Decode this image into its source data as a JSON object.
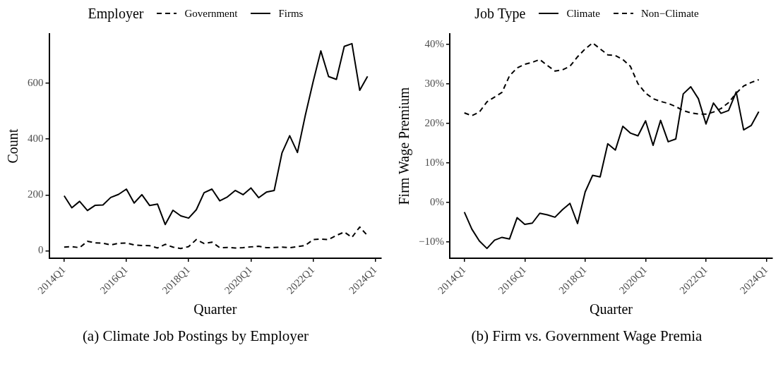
{
  "chart_data": [
    {
      "type": "line",
      "legend": "top",
      "legend_title": "Employer",
      "xlabel": "Quarter",
      "ylabel": "Count",
      "x": [
        "2014-01",
        "2014-04",
        "2014-07",
        "2014-10",
        "2015-01",
        "2015-04",
        "2015-07",
        "2015-10",
        "2016-01",
        "2016-04",
        "2016-07",
        "2016-10",
        "2017-01",
        "2017-04",
        "2017-07",
        "2017-10",
        "2018-01",
        "2018-04",
        "2018-07",
        "2018-10",
        "2019-01",
        "2019-04",
        "2019-07",
        "2019-10",
        "2020-01",
        "2020-04",
        "2020-07",
        "2020-10",
        "2021-01",
        "2021-04",
        "2021-07",
        "2021-10",
        "2022-01",
        "2022-04",
        "2022-07",
        "2022-10",
        "2023-01",
        "2023-04",
        "2023-07",
        "2023-10"
      ],
      "series": [
        {
          "name": "Government",
          "color": "#000000",
          "line_style": "dashed",
          "values": [
            13,
            15,
            11,
            34,
            28,
            27,
            21,
            27,
            28,
            21,
            19,
            18,
            10,
            23,
            13,
            8,
            15,
            40,
            26,
            31,
            11,
            12,
            10,
            11,
            14,
            16,
            11,
            12,
            13,
            11,
            15,
            19,
            40,
            42,
            40,
            55,
            67,
            48,
            85,
            54
          ]
        },
        {
          "name": "Firms",
          "color": "#000000",
          "line_style": "solid",
          "values": [
            197,
            154,
            177,
            144,
            163,
            164,
            191,
            202,
            221,
            171,
            201,
            162,
            167,
            94,
            145,
            125,
            117,
            147,
            208,
            221,
            179,
            193,
            216,
            201,
            225,
            190,
            210,
            216,
            351,
            412,
            352,
            485,
            606,
            716,
            624,
            614,
            732,
            742,
            575,
            625
          ]
        }
      ],
      "xlim": [
        "2013-07-08",
        "2024-03-10"
      ],
      "xticks": [
        {
          "value": "2014-01",
          "label": "2014Q1"
        },
        {
          "value": "2016-01",
          "label": "2016Q1"
        },
        {
          "value": "2018-01",
          "label": "2018Q1"
        },
        {
          "value": "2020-01",
          "label": "2020Q1"
        },
        {
          "value": "2022-01",
          "label": "2022Q1"
        },
        {
          "value": "2024-01",
          "label": "2024Q1"
        }
      ],
      "ylim": [
        -27,
        777
      ],
      "yticks": [
        0,
        200,
        400,
        600
      ],
      "grid": false,
      "annotations": [
        "(a) Climate Job Postings by Employer"
      ]
    },
    {
      "type": "line",
      "legend": "top",
      "legend_title": "Job Type",
      "xlabel": "Quarter",
      "ylabel": "Firm Wage Premium",
      "x": [
        "2014-01",
        "2014-04",
        "2014-07",
        "2014-10",
        "2015-01",
        "2015-04",
        "2015-07",
        "2015-10",
        "2016-01",
        "2016-04",
        "2016-07",
        "2016-10",
        "2017-01",
        "2017-04",
        "2017-07",
        "2017-10",
        "2018-01",
        "2018-04",
        "2018-07",
        "2018-10",
        "2019-01",
        "2019-04",
        "2019-07",
        "2019-10",
        "2020-01",
        "2020-04",
        "2020-07",
        "2020-10",
        "2021-01",
        "2021-04",
        "2021-07",
        "2021-10",
        "2022-01",
        "2022-04",
        "2022-07",
        "2022-10",
        "2023-01",
        "2023-04",
        "2023-07",
        "2023-10"
      ],
      "series": [
        {
          "name": "Climate",
          "color": "#000000",
          "line_style": "solid",
          "values": [
            -2.4,
            -6.7,
            -9.7,
            -11.6,
            -9.5,
            -8.8,
            -9.2,
            -3.8,
            -5.5,
            -5.2,
            -2.7,
            -3.1,
            -3.7,
            -1.8,
            -0.2,
            -5.3,
            2.7,
            6.9,
            6.5,
            14.9,
            13.3,
            19.3,
            17.6,
            16.9,
            20.7,
            14.5,
            20.8,
            15.4,
            16.1,
            27.5,
            29.3,
            26.3,
            19.9,
            25.2,
            22.6,
            23.3,
            28.0,
            18.4,
            19.5,
            23.0
          ]
        },
        {
          "name": "Non−Climate",
          "color": "#000000",
          "line_style": "dashed",
          "values": [
            22.7,
            22.0,
            22.9,
            25.5,
            26.7,
            27.9,
            32.1,
            34.1,
            35.0,
            35.5,
            36.2,
            34.7,
            33.3,
            33.6,
            34.5,
            36.9,
            38.9,
            40.4,
            38.9,
            37.4,
            37.2,
            36.2,
            34.5,
            30.1,
            27.7,
            26.3,
            25.6,
            25.1,
            24.3,
            23.3,
            22.7,
            22.4,
            22.4,
            22.9,
            23.8,
            25.3,
            27.7,
            29.5,
            30.4,
            31.1
          ]
        }
      ],
      "xlim": [
        "2013-07-08",
        "2024-03-14"
      ],
      "xticks": [
        {
          "value": "2014-01",
          "label": "2014Q1"
        },
        {
          "value": "2016-01",
          "label": "2016Q1"
        },
        {
          "value": "2018-01",
          "label": "2018Q1"
        },
        {
          "value": "2020-01",
          "label": "2020Q1"
        },
        {
          "value": "2022-01",
          "label": "2022Q1"
        },
        {
          "value": "2024-01",
          "label": "2024Q1"
        }
      ],
      "ylim": [
        -14.1,
        42.7
      ],
      "yticks": [
        {
          "value": -10,
          "label": "−10%"
        },
        {
          "value": 0,
          "label": "0%"
        },
        {
          "value": 10,
          "label": "10%"
        },
        {
          "value": 20,
          "label": "20%"
        },
        {
          "value": 30,
          "label": "30%"
        },
        {
          "value": 40,
          "label": "40%"
        }
      ],
      "grid": false,
      "annotations": [
        "(b) Firm vs. Government Wage Premia"
      ]
    }
  ]
}
